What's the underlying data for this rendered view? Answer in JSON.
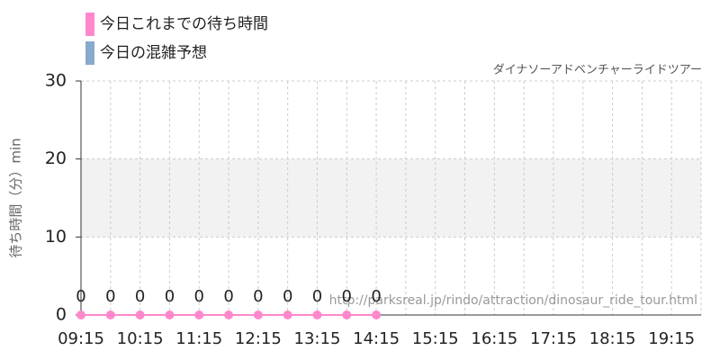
{
  "chart_data": {
    "type": "line",
    "subtitle": "ダイナソーアドベンチャーライドツアー",
    "y_label": "待ち時間（分）min",
    "annotation": "http://parksreal.jp/rindo/attraction/dinosaur_ride_tour.html",
    "categories": [
      "09:15",
      null,
      "10:15",
      null,
      "11:15",
      null,
      "12:15",
      null,
      "13:15",
      null,
      "14:15",
      null,
      "15:15",
      null,
      "16:15",
      null,
      "17:15",
      null,
      "18:15",
      null,
      "19:15",
      null
    ],
    "series": [
      {
        "name": "今日これまでの待ち時間",
        "color": "#ff88cc",
        "values": [
          0,
          0,
          0,
          0,
          0,
          0,
          0,
          0,
          0,
          0,
          0,
          null,
          null,
          null,
          null,
          null,
          null,
          null,
          null,
          null,
          null,
          null
        ]
      },
      {
        "name": "今日の混雑予想",
        "color": "#88aacc",
        "values": [
          null,
          null,
          null,
          null,
          null,
          null,
          null,
          null,
          null,
          null,
          null,
          null,
          null,
          null,
          null,
          null,
          null,
          null,
          null,
          null,
          null,
          null
        ]
      }
    ],
    "ylim": [
      0,
      30
    ],
    "yticks": [
      0,
      10,
      20,
      30
    ],
    "shaded_range": [
      10,
      20
    ],
    "grid": true
  }
}
